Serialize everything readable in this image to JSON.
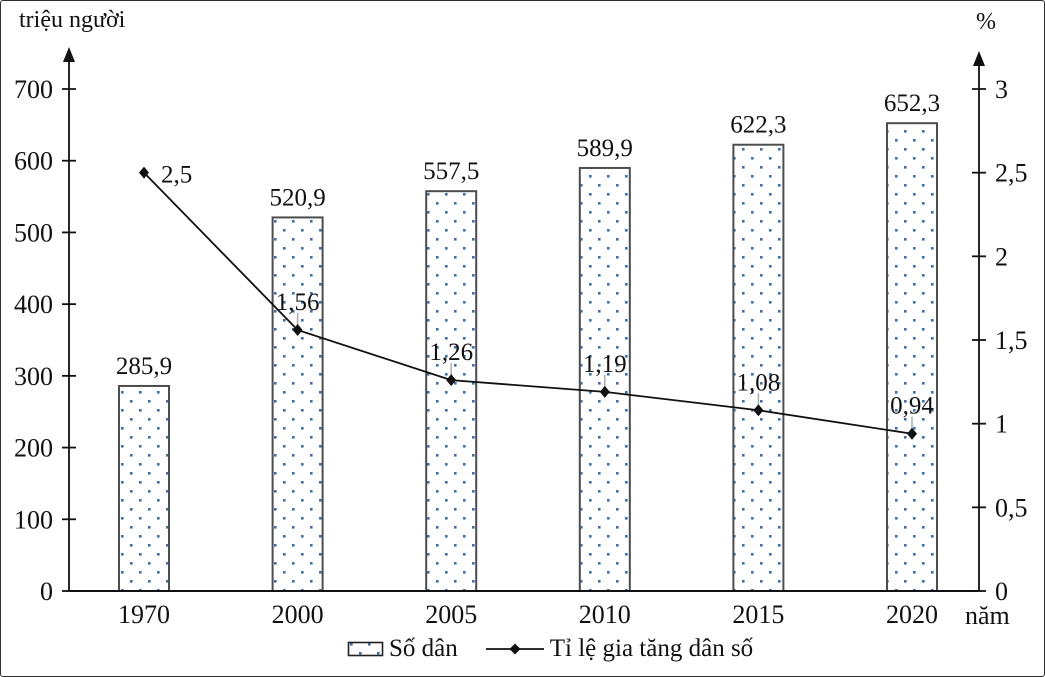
{
  "chart_data": {
    "type": "bar+line-combo",
    "categories": [
      "1970",
      "2000",
      "2005",
      "2010",
      "2015",
      "2020"
    ],
    "series": [
      {
        "name": "Số dân",
        "type": "bar",
        "axis": "left",
        "unit": "triệu người",
        "values": [
          285.9,
          520.9,
          557.5,
          589.9,
          622.3,
          652.3
        ],
        "labels": [
          "285,9",
          "520,9",
          "557,5",
          "589,9",
          "622,3",
          "652,3"
        ]
      },
      {
        "name": "Tỉ lệ gia tăng dân số",
        "type": "line",
        "axis": "right",
        "unit": "%",
        "values": [
          2.5,
          1.56,
          1.26,
          1.19,
          1.08,
          0.94
        ],
        "labels": [
          "2,5",
          "1,56",
          "1,26",
          "1,19",
          "1,08",
          "0,94"
        ]
      }
    ],
    "left_axis": {
      "title": "triệu người",
      "max": 700,
      "ticks": [
        0,
        100,
        200,
        300,
        400,
        500,
        600,
        700
      ],
      "tick_labels": [
        "0",
        "100",
        "200",
        "300",
        "400",
        "500",
        "600",
        "700"
      ]
    },
    "right_axis": {
      "title": "%",
      "max": 3,
      "ticks": [
        0,
        0.5,
        1,
        1.5,
        2,
        2.5,
        3
      ],
      "tick_labels": [
        "0",
        "0,5",
        "1",
        "1,5",
        "2",
        "2,5",
        "3"
      ]
    },
    "x_axis": {
      "title": "năm"
    },
    "legend": [
      {
        "label": "Số dân",
        "swatch": "dotted-bar"
      },
      {
        "label": "Tỉ lệ gia tăng dân số",
        "swatch": "line-diamond"
      }
    ],
    "layout": {
      "grid": false,
      "legend_position": "bottom-center"
    },
    "colors": {
      "bar_dot": "#3e6fa8",
      "bar_border": "#4d4d4d",
      "bar_fill": "#ffffff",
      "line": "#111111",
      "leader": "#ababab",
      "background": "#ffffff"
    }
  }
}
